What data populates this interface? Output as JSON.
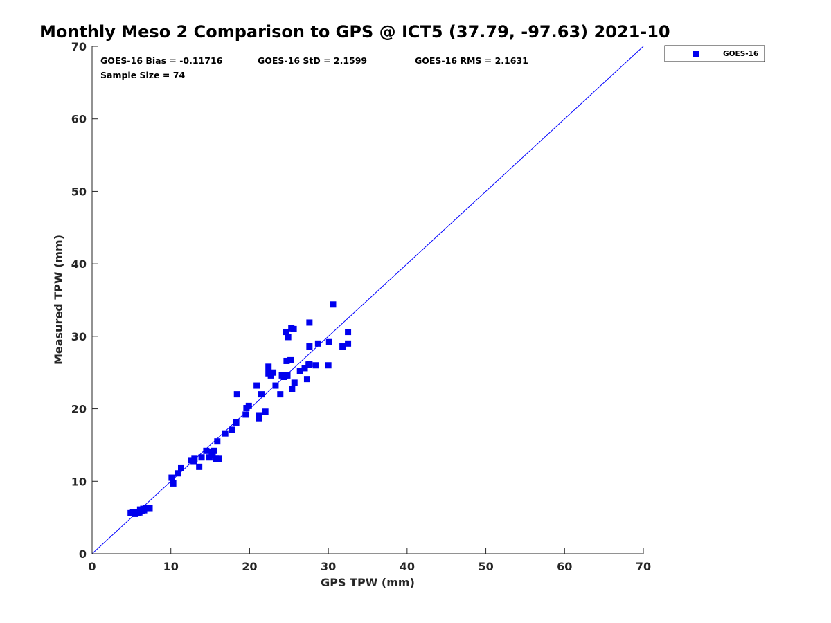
{
  "chart_data": {
    "type": "scatter",
    "title": "Monthly Meso 2 Comparison to GPS @ ICT5 (37.79, -97.63) 2021-10",
    "xlabel": "GPS TPW (mm)",
    "ylabel": "Measured TPW (mm)",
    "xlim": [
      0,
      70
    ],
    "ylim": [
      0,
      70
    ],
    "xticks": [
      "0",
      "10",
      "20",
      "30",
      "40",
      "50",
      "60",
      "70"
    ],
    "yticks": [
      "0",
      "10",
      "20",
      "30",
      "40",
      "50",
      "60",
      "70"
    ],
    "grid": false,
    "legend_position": "outside-top-right",
    "reference_line": {
      "x": [
        0,
        70
      ],
      "y": [
        0,
        70
      ],
      "color": "#0000ff"
    },
    "annotations": {
      "bias": "GOES-16 Bias = -0.11716",
      "std": "GOES-16 StD = 2.1599",
      "rms": "GOES-16 RMS = 2.1631",
      "sample": "Sample Size = 74"
    },
    "series": [
      {
        "name": "GOES-16",
        "color": "#0000ee",
        "marker": "square",
        "x": [
          4.9,
          5.2,
          5.5,
          5.8,
          6.0,
          6.1,
          6.3,
          6.5,
          6.9,
          7.3,
          5.4,
          6.6,
          10.1,
          10.3,
          10.9,
          11.3,
          12.6,
          12.9,
          13.0,
          13.6,
          13.9,
          14.5,
          14.9,
          15.2,
          15.3,
          15.5,
          15.7,
          15.9,
          16.1,
          16.9,
          17.8,
          18.3,
          18.4,
          19.5,
          19.6,
          19.9,
          20.9,
          21.2,
          21.2,
          21.5,
          22.0,
          22.4,
          22.4,
          22.7,
          23.0,
          23.3,
          23.9,
          24.1,
          24.4,
          24.6,
          24.7,
          24.9,
          25.2,
          25.3,
          25.4,
          25.6,
          25.7,
          26.4,
          27.0,
          27.3,
          27.6,
          27.6,
          27.6,
          28.4,
          28.7,
          30.0,
          30.1,
          30.6,
          31.8,
          32.5,
          32.5,
          24.5,
          24.8,
          27.5
        ],
        "y": [
          5.6,
          5.7,
          5.5,
          5.6,
          5.7,
          6.1,
          5.9,
          6.2,
          6.3,
          6.3,
          5.6,
          6.0,
          10.5,
          9.7,
          11.1,
          11.8,
          12.9,
          12.7,
          13.1,
          12.0,
          13.3,
          14.2,
          13.3,
          14.1,
          13.6,
          14.2,
          13.1,
          15.5,
          13.1,
          16.6,
          17.1,
          18.1,
          22.0,
          19.2,
          20.1,
          20.4,
          23.2,
          18.7,
          19.1,
          22.0,
          19.6,
          25.8,
          24.9,
          24.6,
          25.0,
          23.2,
          22.0,
          24.6,
          24.4,
          30.6,
          26.6,
          29.9,
          26.7,
          31.1,
          22.7,
          31.0,
          23.6,
          25.2,
          25.6,
          24.1,
          31.9,
          28.6,
          26.2,
          26.0,
          29.0,
          26.0,
          29.2,
          34.4,
          28.6,
          30.6,
          29.0,
          24.6,
          24.6,
          26.1
        ]
      }
    ]
  }
}
